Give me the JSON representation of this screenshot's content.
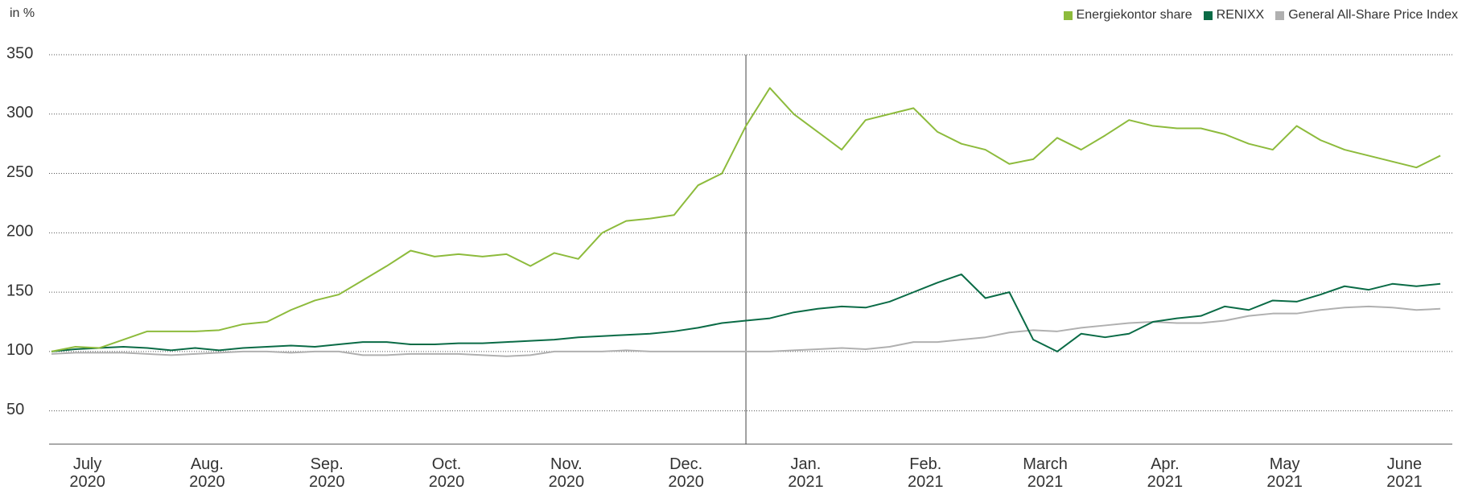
{
  "chart_data": {
    "type": "line",
    "y_unit_label": "in %",
    "x": [
      0.2,
      0.4,
      0.6,
      0.8,
      1.0,
      1.2,
      1.4,
      1.6,
      1.8,
      2.0,
      2.2,
      2.4,
      2.6,
      2.8,
      3.0,
      3.2,
      3.4,
      3.6,
      3.8,
      4.0,
      4.2,
      4.4,
      4.6,
      4.8,
      5.0,
      5.2,
      5.4,
      5.6,
      5.8,
      6.0,
      6.2,
      6.4,
      6.6,
      6.8,
      7.0,
      7.2,
      7.4,
      7.6,
      7.8,
      8.0,
      8.2,
      8.4,
      8.6,
      8.8,
      9.0,
      9.2,
      9.4,
      9.6,
      9.8,
      10.0,
      10.2,
      10.4,
      10.6,
      10.8,
      11.0,
      11.2,
      11.4,
      11.6,
      11.8
    ],
    "series": [
      {
        "name": "Energiekontor share",
        "color": "#8dbb3c",
        "values": [
          100,
          104,
          103,
          110,
          117,
          117,
          117,
          118,
          123,
          125,
          135,
          143,
          148,
          160,
          172,
          185,
          180,
          182,
          180,
          182,
          172,
          183,
          178,
          200,
          210,
          212,
          215,
          240,
          250,
          290,
          322,
          300,
          285,
          270,
          295,
          300,
          305,
          285,
          275,
          270,
          258,
          262,
          280,
          270,
          282,
          295,
          290,
          288,
          288,
          283,
          275,
          270,
          290,
          278,
          270,
          265,
          260,
          255,
          265
        ]
      },
      {
        "name": "RENIXX",
        "color": "#0a6b46",
        "values": [
          100,
          102,
          103,
          104,
          103,
          101,
          103,
          101,
          103,
          104,
          105,
          104,
          106,
          108,
          108,
          106,
          106,
          107,
          107,
          108,
          109,
          110,
          112,
          113,
          114,
          115,
          117,
          120,
          124,
          126,
          128,
          133,
          136,
          138,
          137,
          142,
          150,
          158,
          165,
          145,
          150,
          110,
          100,
          115,
          112,
          115,
          125,
          128,
          130,
          138,
          135,
          143,
          142,
          148,
          155,
          152,
          157,
          155,
          157
        ]
      },
      {
        "name": "General All-Share Price Index",
        "color": "#b0b0b0",
        "values": [
          98,
          99,
          99,
          99,
          98,
          97,
          98,
          99,
          100,
          100,
          99,
          100,
          100,
          97,
          97,
          98,
          98,
          98,
          97,
          96,
          97,
          100,
          100,
          100,
          101,
          100,
          100,
          100,
          100,
          100,
          100,
          101,
          102,
          103,
          102,
          104,
          108,
          108,
          110,
          112,
          116,
          118,
          117,
          120,
          122,
          124,
          125,
          124,
          124,
          126,
          130,
          132,
          132,
          135,
          137,
          138,
          137,
          135,
          136
        ]
      }
    ],
    "xlim": [
      0.18,
      11.9
    ],
    "xticks": [
      {
        "value": 0.5,
        "label": "July\n2020"
      },
      {
        "value": 1.5,
        "label": "Aug.\n2020"
      },
      {
        "value": 2.5,
        "label": "Sep.\n2020"
      },
      {
        "value": 3.5,
        "label": "Oct.\n2020"
      },
      {
        "value": 4.5,
        "label": "Nov.\n2020"
      },
      {
        "value": 5.5,
        "label": "Dec.\n2020"
      },
      {
        "value": 6.5,
        "label": "Jan.\n2021"
      },
      {
        "value": 7.5,
        "label": "Feb.\n2021"
      },
      {
        "value": 8.5,
        "label": "March\n2021"
      },
      {
        "value": 9.5,
        "label": "Apr.\n2021"
      },
      {
        "value": 10.5,
        "label": "May\n2021"
      },
      {
        "value": 11.5,
        "label": "June\n2021"
      }
    ],
    "ylim": [
      22,
      350
    ],
    "yticks": [
      50,
      100,
      150,
      200,
      250,
      300,
      350
    ],
    "grid": true,
    "divider_x": 6,
    "legend": "top-right"
  }
}
